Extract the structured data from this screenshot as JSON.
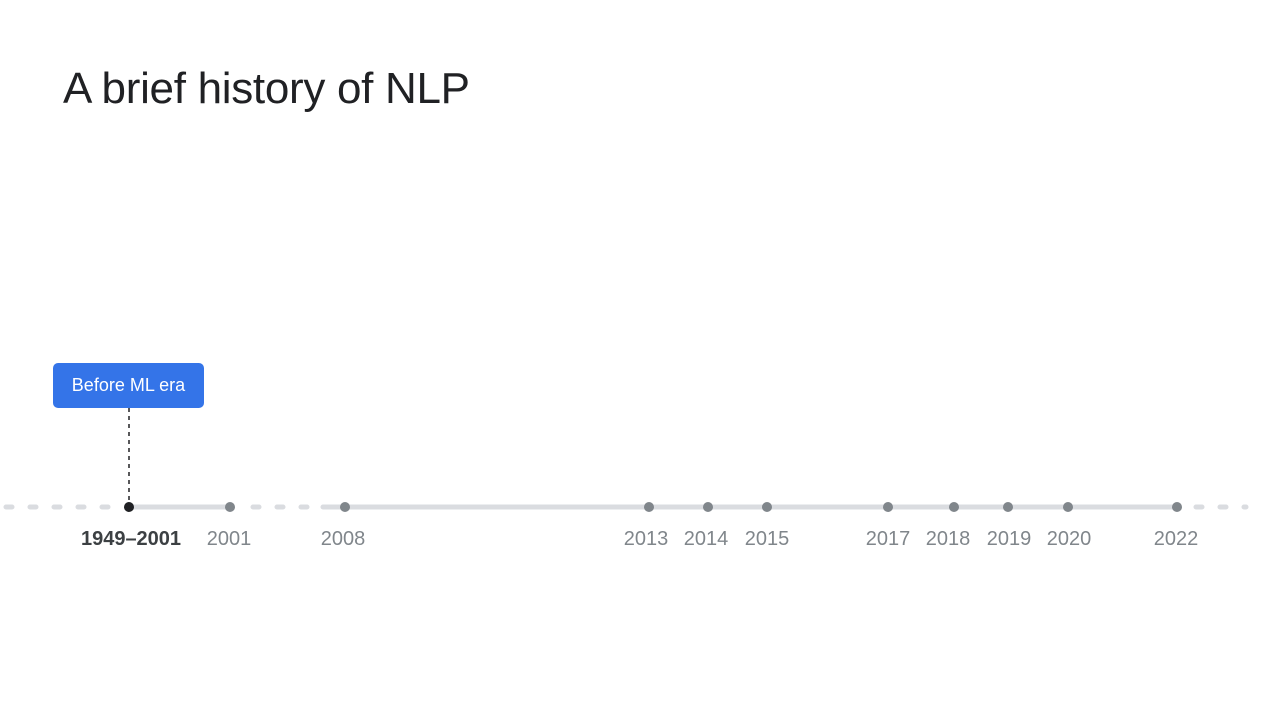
{
  "slide": {
    "title": "A brief history of NLP"
  },
  "callout": {
    "label": "Before ML era",
    "color": "#3474e8"
  },
  "timeline": {
    "track_color": "#dadce0",
    "dot_color": "#80868b",
    "active_dot_color": "#202124",
    "milestones": [
      {
        "label": "1949–2001",
        "active": true
      },
      {
        "label": "2001",
        "active": false
      },
      {
        "label": "2008",
        "active": false
      },
      {
        "label": "2013",
        "active": false
      },
      {
        "label": "2014",
        "active": false
      },
      {
        "label": "2015",
        "active": false
      },
      {
        "label": "2017",
        "active": false
      },
      {
        "label": "2018",
        "active": false
      },
      {
        "label": "2019",
        "active": false
      },
      {
        "label": "2020",
        "active": false
      },
      {
        "label": "2022",
        "active": false
      }
    ]
  }
}
